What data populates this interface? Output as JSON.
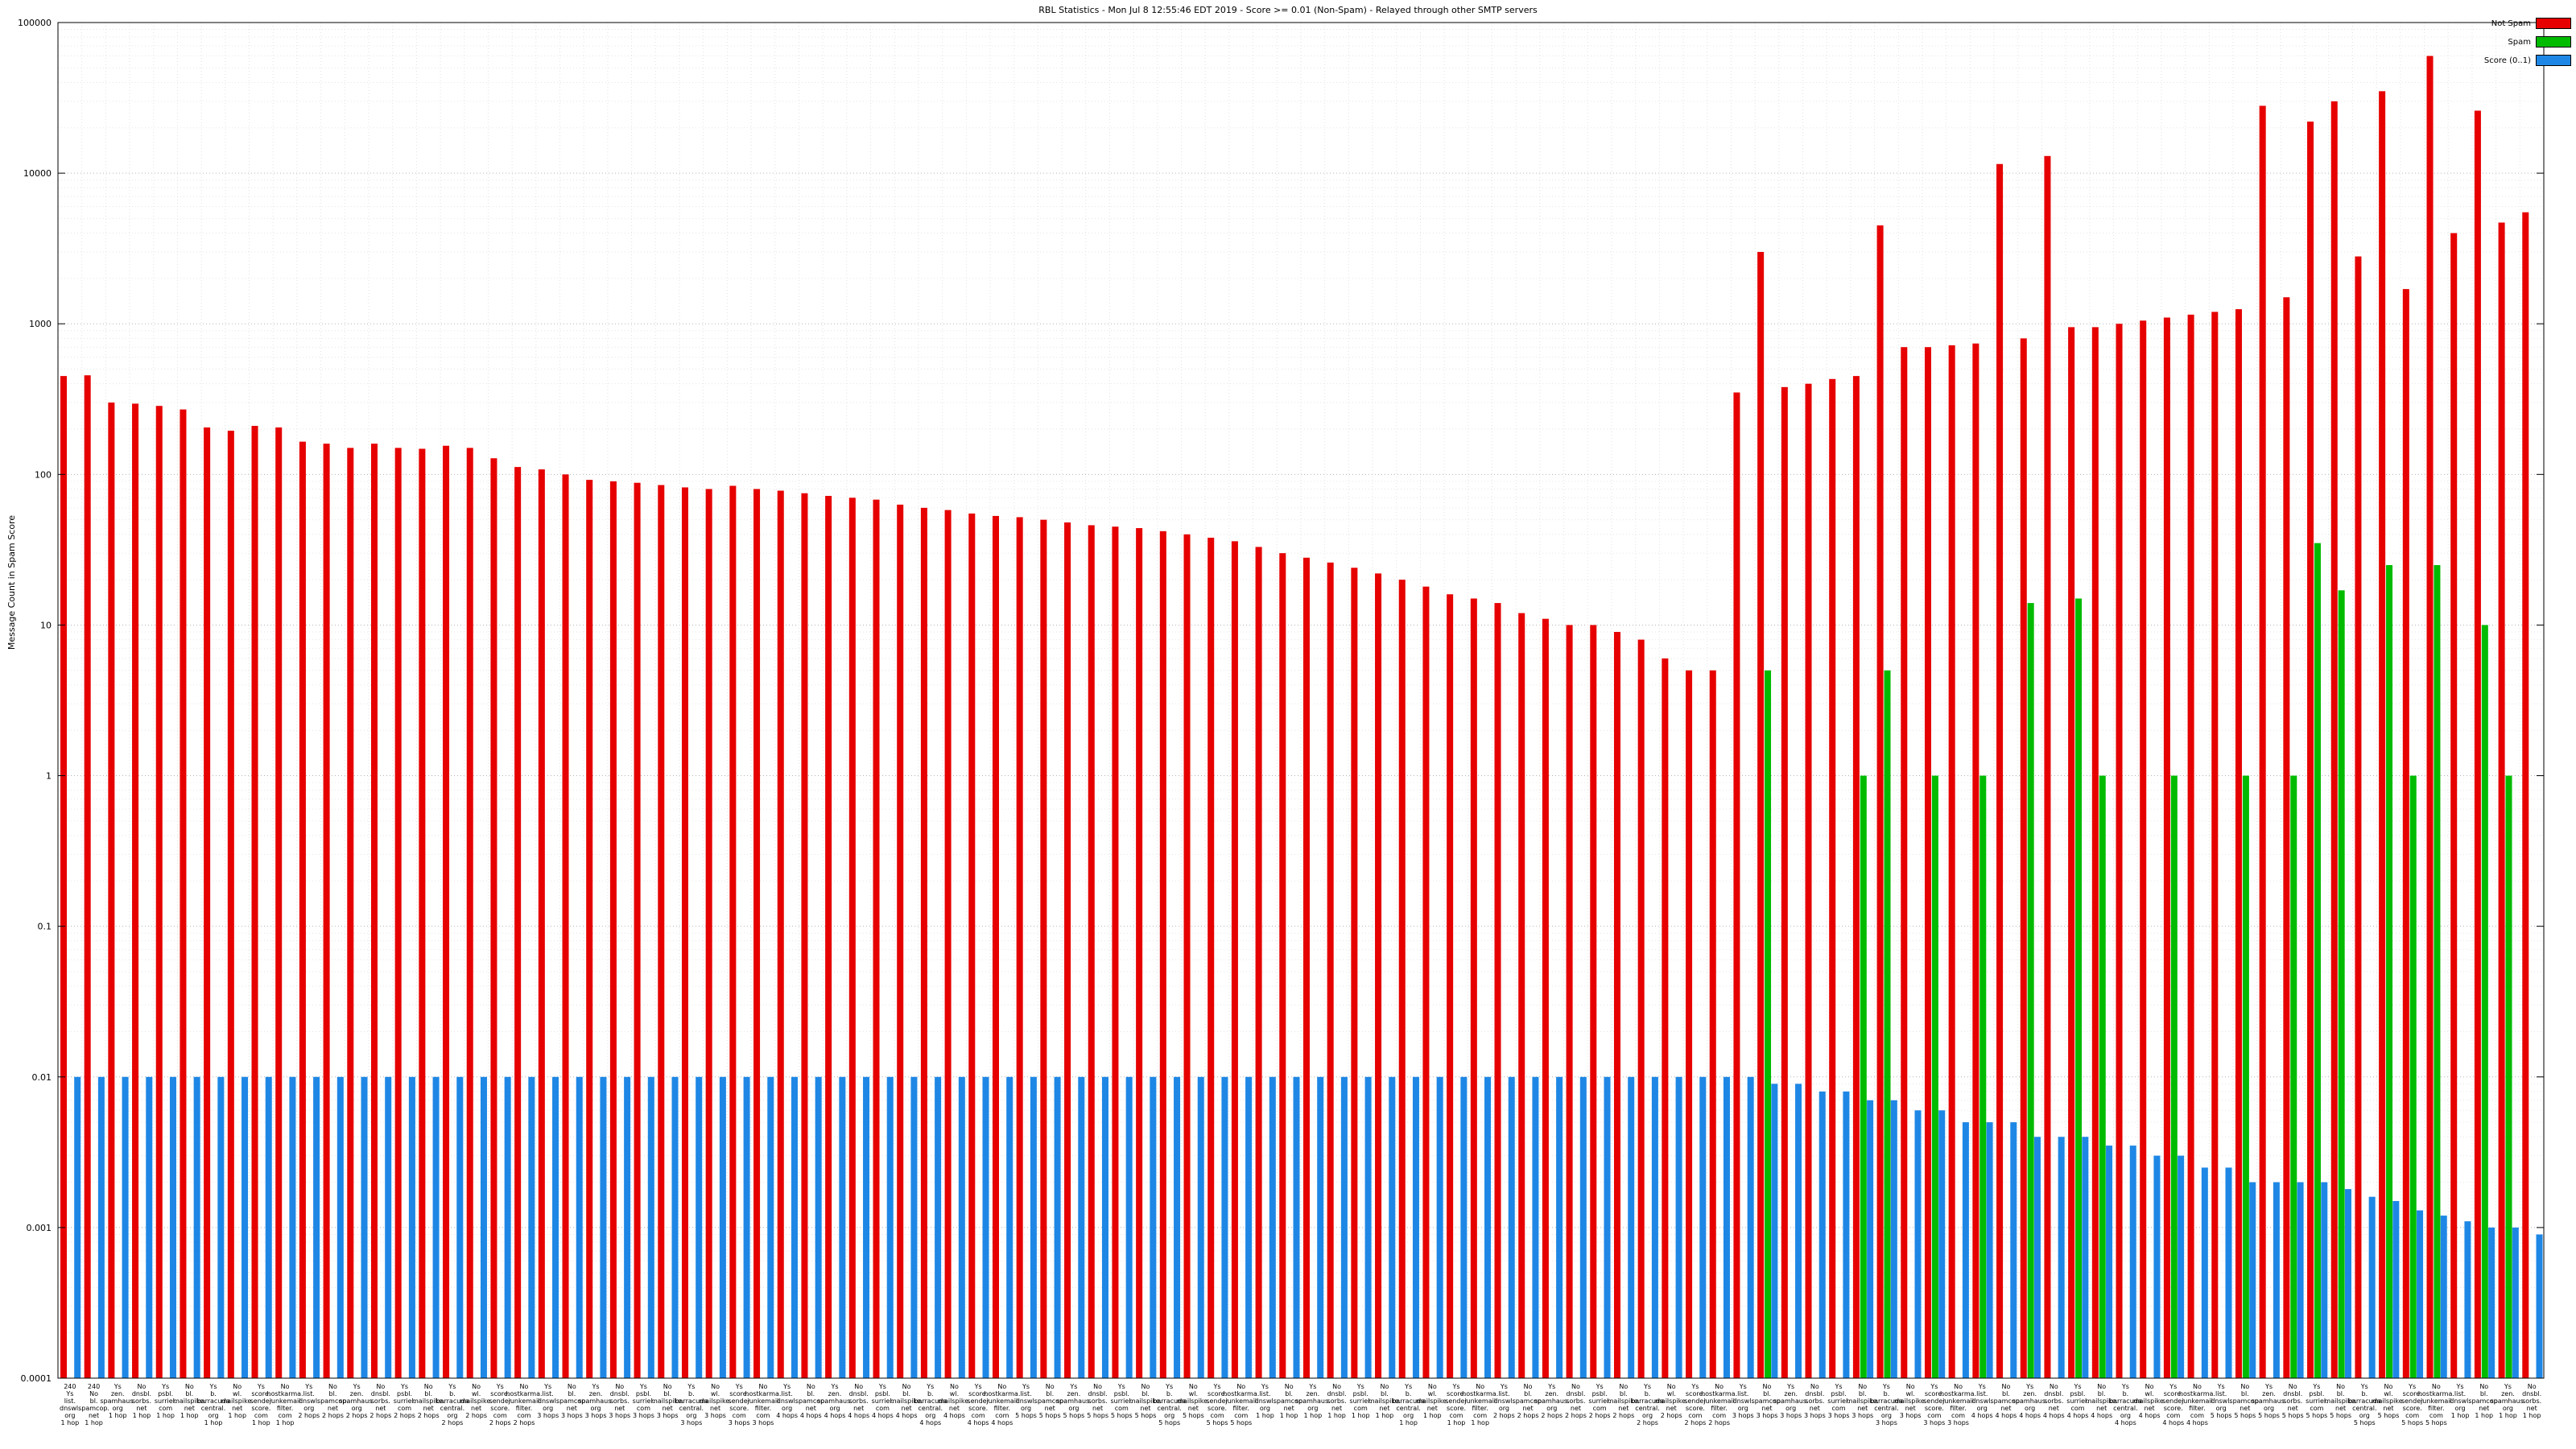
{
  "title": "RBL Statistics - Mon Jul  8 12:55:46 EDT 2019 - Score >= 0.01 (Non-Spam) - Relayed through other SMTP servers",
  "ylabel": "Message Count in Spam Score",
  "legend": {
    "items": [
      {
        "label": "Not Spam",
        "color": "#e60000"
      },
      {
        "label": "Spam",
        "color": "#00bb00"
      },
      {
        "label": "Score (0..1)",
        "color": "#1e87e5"
      }
    ]
  },
  "chart_data": {
    "type": "bar",
    "y_scale": "log",
    "ylim": [
      0.0001,
      100000
    ],
    "y_ticks": [
      "100000",
      "10000",
      "1000",
      "100",
      "10",
      "1",
      "0.1",
      "0.01",
      "0.001",
      "0.0001"
    ],
    "grid": true,
    "legend_position": "top-right",
    "categories": [
      "240|Ys|list.|dnswl.|org|1 hop",
      "240|No|bl.|spamcop.|net|1 hop",
      "Ys|zen.|spamhaus.|org|1 hop",
      "No|dnsbl.|sorbs.|net|1 hop",
      "Ys|psbl.|surriel.|com|1 hop",
      "No|bl.|mailspike.|net|1 hop",
      "Ys|b.|barracuda|central.|org|1 hop",
      "No|wl.|mailspike.|net|1 hop",
      "Ys|score.|sender|score.|com|1 hop",
      "No|hostkarma.|junkemail|filter.|com|1 hop",
      "Ys|list.|dnswl.|org|2 hops",
      "No|bl.|spamcop.|net|2 hops",
      "Ys|zen.|spamhaus.|org|2 hops",
      "No|dnsbl.|sorbs.|net|2 hops",
      "Ys|psbl.|surriel.|com|2 hops",
      "No|bl.|mailspike.|net|2 hops",
      "Ys|b.|barracuda|central.|org|2 hops",
      "No|wl.|mailspike.|net|2 hops",
      "Ys|score.|sender|score.|com|2 hops",
      "No|hostkarma.|junkemail|filter.|com|2 hops",
      "Ys|list.|dnswl.|org|3 hops",
      "No|bl.|spamcop.|net|3 hops",
      "Ys|zen.|spamhaus.|org|3 hops",
      "No|dnsbl.|sorbs.|net|3 hops",
      "Ys|psbl.|surriel.|com|3 hops",
      "No|bl.|mailspike.|net|3 hops",
      "Ys|b.|barracuda|central.|org|3 hops",
      "No|wl.|mailspike.|net|3 hops",
      "Ys|score.|sender|score.|com|3 hops",
      "No|hostkarma.|junkemail|filter.|com|3 hops",
      "Ys|list.|dnswl.|org|4 hops",
      "No|bl.|spamcop.|net|4 hops",
      "Ys|zen.|spamhaus.|org|4 hops",
      "No|dnsbl.|sorbs.|net|4 hops",
      "Ys|psbl.|surriel.|com|4 hops",
      "No|bl.|mailspike.|net|4 hops",
      "Ys|b.|barracuda|central.|org|4 hops",
      "No|wl.|mailspike.|net|4 hops",
      "Ys|score.|sender|score.|com|4 hops",
      "No|hostkarma.|junkemail|filter.|com|4 hops",
      "Ys|list.|dnswl.|org|5 hops",
      "No|bl.|spamcop.|net|5 hops",
      "Ys|zen.|spamhaus.|org|5 hops",
      "No|dnsbl.|sorbs.|net|5 hops",
      "Ys|psbl.|surriel.|com|5 hops",
      "No|bl.|mailspike.|net|5 hops",
      "Ys|b.|barracuda|central.|org|5 hops",
      "No|wl.|mailspike.|net|5 hops",
      "Ys|score.|sender|score.|com|5 hops",
      "No|hostkarma.|junkemail|filter.|com|5 hops",
      "Ys|list.|dnswl.|org|1 hop",
      "No|bl.|spamcop.|net|1 hop",
      "Ys|zen.|spamhaus.|org|1 hop",
      "No|dnsbl.|sorbs.|net|1 hop",
      "Ys|psbl.|surriel.|com|1 hop",
      "No|bl.|mailspike.|net|1 hop",
      "Ys|b.|barracuda|central.|org|1 hop",
      "No|wl.|mailspike.|net|1 hop",
      "Ys|score.|sender|score.|com|1 hop",
      "No|hostkarma.|junkemail|filter.|com|1 hop",
      "Ys|list.|dnswl.|org|2 hops",
      "No|bl.|spamcop.|net|2 hops",
      "Ys|zen.|spamhaus.|org|2 hops",
      "No|dnsbl.|sorbs.|net|2 hops",
      "Ys|psbl.|surriel.|com|2 hops",
      "No|bl.|mailspike.|net|2 hops",
      "Ys|b.|barracuda|central.|org|2 hops",
      "No|wl.|mailspike.|net|2 hops",
      "Ys|score.|sender|score.|com|2 hops",
      "No|hostkarma.|junkemail|filter.|com|2 hops",
      "Ys|list.|dnswl.|org|3 hops",
      "No|bl.|spamcop.|net|3 hops",
      "Ys|zen.|spamhaus.|org|3 hops",
      "No|dnsbl.|sorbs.|net|3 hops",
      "Ys|psbl.|surriel.|com|3 hops",
      "No|bl.|mailspike.|net|3 hops",
      "Ys|b.|barracuda|central.|org|3 hops",
      "No|wl.|mailspike.|net|3 hops",
      "Ys|score.|sender|score.|com|3 hops",
      "No|hostkarma.|junkemail|filter.|com|3 hops",
      "Ys|list.|dnswl.|org|4 hops",
      "No|bl.|spamcop.|net|4 hops",
      "Ys|zen.|spamhaus.|org|4 hops",
      "No|dnsbl.|sorbs.|net|4 hops",
      "Ys|psbl.|surriel.|com|4 hops",
      "No|bl.|mailspike.|net|4 hops",
      "Ys|b.|barracuda|central.|org|4 hops",
      "No|wl.|mailspike.|net|4 hops",
      "Ys|score.|sender|score.|com|4 hops",
      "No|hostkarma.|junkemail|filter.|com|4 hops",
      "Ys|list.|dnswl.|org|5 hops",
      "No|bl.|spamcop.|net|5 hops",
      "Ys|zen.|spamhaus.|org|5 hops",
      "No|dnsbl.|sorbs.|net|5 hops",
      "Ys|psbl.|surriel.|com|5 hops",
      "No|bl.|mailspike.|net|5 hops",
      "Ys|b.|barracuda|central.|org|5 hops",
      "No|wl.|mailspike.|net|5 hops",
      "Ys|score.|sender|score.|com|5 hops",
      "No|hostkarma.|junkemail|filter.|com|5 hops",
      "Ys|list.|dnswl.|org|1 hop",
      "No|bl.|spamcop.|net|1 hop",
      "Ys|zen.|spamhaus.|org|1 hop",
      "No|dnsbl.|sorbs.|net|1 hop"
    ],
    "series": [
      {
        "name": "Not Spam",
        "color": "#e60000",
        "values": [
          450,
          455,
          300,
          295,
          285,
          270,
          205,
          195,
          210,
          205,
          165,
          160,
          150,
          160,
          150,
          148,
          155,
          150,
          128,
          112,
          108,
          100,
          92,
          90,
          88,
          85,
          82,
          80,
          84,
          80,
          78,
          75,
          72,
          70,
          68,
          63,
          60,
          58,
          55,
          53,
          52,
          50,
          48,
          46,
          45,
          44,
          42,
          40,
          38,
          36,
          33,
          30,
          28,
          26,
          24,
          22,
          20,
          18,
          16,
          15,
          14,
          12,
          11,
          10,
          10,
          9,
          8,
          6,
          5,
          5,
          350,
          3000,
          380,
          400,
          430,
          450,
          4500,
          700,
          700,
          720,
          740,
          11500,
          800,
          13000,
          950,
          950,
          1000,
          1050,
          1100,
          1150,
          1200,
          1250,
          28000,
          1500,
          22000,
          30000,
          2800,
          35000,
          1700,
          60000,
          4000,
          26000,
          4700,
          5500
        ]
      },
      {
        "name": "Spam",
        "color": "#00bb00",
        "values": [
          0,
          0,
          0,
          0,
          0,
          0,
          0,
          0,
          0,
          0,
          0,
          0,
          0,
          0,
          0,
          0,
          0,
          0,
          0,
          0,
          0,
          0,
          0,
          0,
          0,
          0,
          0,
          0,
          0,
          0,
          0,
          0,
          0,
          0,
          0,
          0,
          0,
          0,
          0,
          0,
          0,
          0,
          0,
          0,
          0,
          0,
          0,
          0,
          0,
          0,
          0,
          0,
          0,
          0,
          0,
          0,
          0,
          0,
          0,
          0,
          0,
          0,
          0,
          0,
          0,
          0,
          0,
          0,
          0,
          0,
          0,
          5,
          0,
          0,
          0,
          1,
          5,
          0,
          1,
          0,
          1,
          0,
          14,
          0,
          15,
          1,
          0,
          0,
          1,
          0,
          0,
          1,
          0,
          1,
          35,
          17,
          0,
          25,
          1,
          25,
          0,
          10,
          1,
          0
        ]
      },
      {
        "name": "Score (0..1)",
        "color": "#1e87e5",
        "values": [
          0.01,
          0.01,
          0.01,
          0.01,
          0.01,
          0.01,
          0.01,
          0.01,
          0.01,
          0.01,
          0.01,
          0.01,
          0.01,
          0.01,
          0.01,
          0.01,
          0.01,
          0.01,
          0.01,
          0.01,
          0.01,
          0.01,
          0.01,
          0.01,
          0.01,
          0.01,
          0.01,
          0.01,
          0.01,
          0.01,
          0.01,
          0.01,
          0.01,
          0.01,
          0.01,
          0.01,
          0.01,
          0.01,
          0.01,
          0.01,
          0.01,
          0.01,
          0.01,
          0.01,
          0.01,
          0.01,
          0.01,
          0.01,
          0.01,
          0.01,
          0.01,
          0.01,
          0.01,
          0.01,
          0.01,
          0.01,
          0.01,
          0.01,
          0.01,
          0.01,
          0.01,
          0.01,
          0.01,
          0.01,
          0.01,
          0.01,
          0.01,
          0.01,
          0.01,
          0.01,
          0.01,
          0.009,
          0.009,
          0.008,
          0.008,
          0.007,
          0.007,
          0.006,
          0.006,
          0.005,
          0.005,
          0.005,
          0.004,
          0.004,
          0.004,
          0.0035,
          0.0035,
          0.003,
          0.003,
          0.0025,
          0.0025,
          0.002,
          0.002,
          0.002,
          0.002,
          0.0018,
          0.0016,
          0.0015,
          0.0013,
          0.0012,
          0.0011,
          0.001,
          0.001,
          0.0009
        ]
      }
    ]
  }
}
